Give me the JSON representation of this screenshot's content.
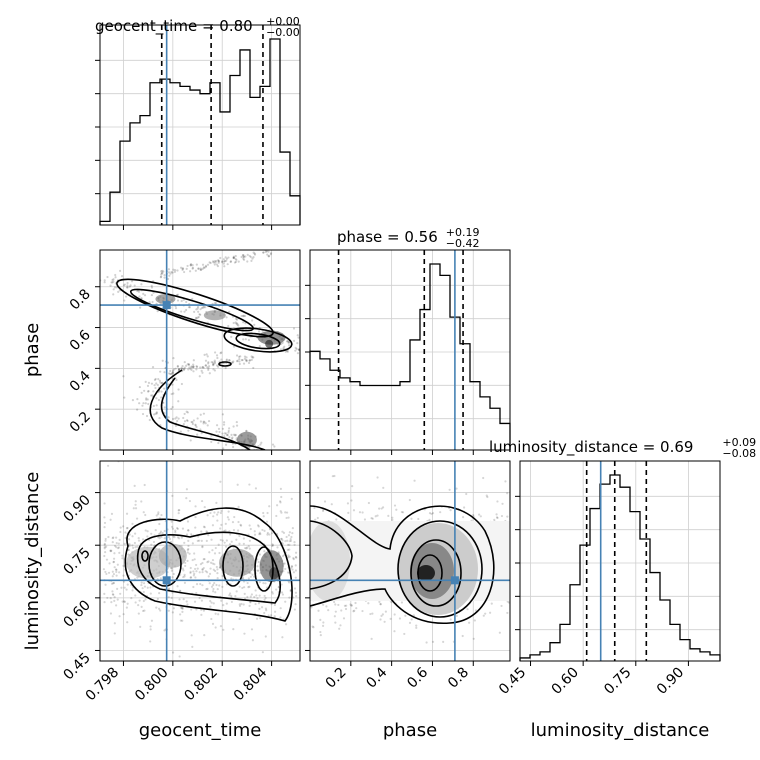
{
  "chart_data": {
    "type": "corner",
    "parameters": [
      "geocent_time",
      "phase",
      "luminosity_distance"
    ],
    "truths": {
      "geocent_time": 0.79975,
      "phase": 0.71,
      "luminosity_distance": 0.65
    },
    "titles": [
      {
        "text": "geocent_time = 0.80",
        "sup": "+0.00",
        "sub": "−0.00"
      },
      {
        "text": "phase = 0.56",
        "sup": "+0.19",
        "sub": "−0.42"
      },
      {
        "text": "luminosity_distance = 0.69",
        "sup": "+0.09",
        "sub": "−0.08"
      }
    ],
    "ticks": {
      "geocent_time": [
        "0.798",
        "0.800",
        "0.802",
        "0.804"
      ],
      "phase": [
        "0.2",
        "0.4",
        "0.6",
        "0.8"
      ],
      "luminosity_distance": [
        "0.45",
        "0.60",
        "0.75",
        "0.90"
      ]
    },
    "ranges": {
      "geocent_time": [
        0.79705,
        0.80515
      ],
      "phase": [
        0.0,
        0.98
      ],
      "luminosity_distance": [
        0.42,
        0.99
      ]
    },
    "quantiles": {
      "geocent_time": [
        0.79955,
        0.80155,
        0.80365
      ],
      "phase": [
        0.14,
        0.56,
        0.75
      ],
      "luminosity_distance": [
        0.61,
        0.69,
        0.78
      ]
    },
    "histograms": {
      "geocent_time": {
        "edges_start": 0.79705,
        "bin_width": 0.000405,
        "counts": [
          1,
          9,
          23,
          28,
          30,
          39,
          40,
          39,
          38,
          37,
          36,
          39,
          31,
          41,
          48,
          35,
          38,
          51,
          20,
          8
        ]
      },
      "phase": {
        "edges_start": 0.0,
        "bin_width": 0.049,
        "counts": [
          26,
          24,
          21,
          19,
          18,
          17,
          17,
          17,
          17,
          18,
          29,
          37,
          49,
          46,
          35,
          28,
          18,
          14,
          11,
          7
        ]
      },
      "luminosity_distance": {
        "edges_start": 0.42,
        "bin_width": 0.0285,
        "counts": [
          1,
          2,
          3,
          6,
          12,
          25,
          38,
          50,
          58,
          61,
          57,
          49,
          40,
          29,
          20,
          12,
          7,
          4,
          3,
          2
        ]
      }
    },
    "grid": true
  }
}
